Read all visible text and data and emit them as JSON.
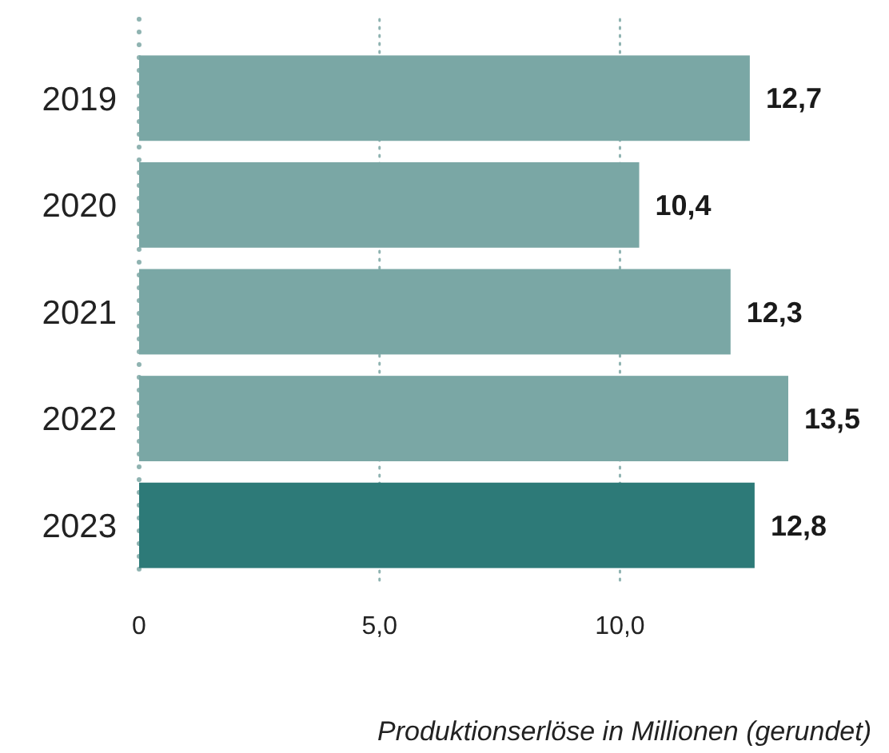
{
  "chart_data": {
    "type": "bar",
    "orientation": "horizontal",
    "categories": [
      "2019",
      "2020",
      "2021",
      "2022",
      "2023"
    ],
    "values": [
      12.7,
      10.4,
      12.3,
      13.5,
      12.8
    ],
    "colors": [
      "#7aa7a5",
      "#7aa7a5",
      "#7aa7a5",
      "#7aa7a5",
      "#2d7a78"
    ],
    "value_labels": [
      "12,7",
      "10,4",
      "12,3",
      "13,5",
      "12,8"
    ],
    "xlim": [
      0,
      13.5
    ],
    "xticks": [
      0,
      {
        "value": 5,
        "label": "5,0"
      },
      {
        "value": 10,
        "label": "10,0"
      }
    ],
    "grid": "x",
    "xlabel": "Produktionserlöse in Millionen (gerundet)"
  }
}
